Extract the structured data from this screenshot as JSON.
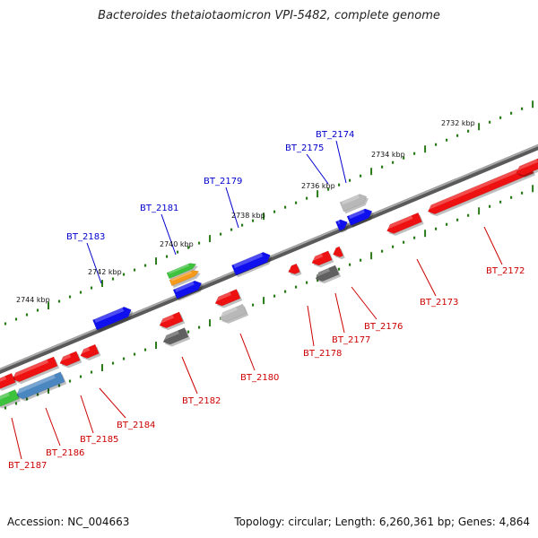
{
  "title": "Bacteroides thetaiotaomicron VPI-5482, complete genome",
  "footer": {
    "accession": "Accession: NC_004663",
    "topology": "Topology: circular; Length: 6,260,361 bp; Genes: 4,864"
  },
  "colors": {
    "backbone": "#8a8a8a",
    "tick": "#2a7a1a",
    "forward_label": "#0000cc",
    "reverse_label": "#cc0000",
    "red": "#ee1111",
    "blue": "#1010ee",
    "gray": "#b8b8b8",
    "darkgray": "#606060",
    "steel": "#4a86c0",
    "green": "#3cc23c",
    "orange": "#f59a1a"
  },
  "scale": {
    "labels": [
      {
        "text": "2732 kbp"
      },
      {
        "text": "2734 kbp"
      },
      {
        "text": "2736 kbp"
      },
      {
        "text": "2738 kbp"
      },
      {
        "text": "2740 kbp"
      },
      {
        "text": "2742 kbp"
      },
      {
        "text": "2744 kbp"
      }
    ]
  },
  "genes": [
    {
      "label": "BT_2172",
      "strand": "reverse",
      "color": "red"
    },
    {
      "label": "BT_2173",
      "strand": "reverse",
      "color": "red"
    },
    {
      "label": "BT_2174",
      "strand": "forward",
      "color": "gray"
    },
    {
      "label": "BT_2175",
      "strand": "forward",
      "color": "blue"
    },
    {
      "label": "BT_2176",
      "strand": "reverse",
      "color": "red"
    },
    {
      "label": "BT_2177",
      "strand": "reverse",
      "color": "darkgray"
    },
    {
      "label": "BT_2178",
      "strand": "reverse",
      "color": "red"
    },
    {
      "label": "BT_2179",
      "strand": "forward",
      "color": "blue"
    },
    {
      "label": "BT_2180",
      "strand": "reverse",
      "color": "gray"
    },
    {
      "label": "BT_2181",
      "strand": "forward",
      "color": "blue"
    },
    {
      "label": "BT_2182",
      "strand": "reverse",
      "color": "darkgray"
    },
    {
      "label": "BT_2183",
      "strand": "forward",
      "color": "blue"
    },
    {
      "label": "BT_2184",
      "strand": "reverse",
      "color": "red"
    },
    {
      "label": "BT_2185",
      "strand": "reverse",
      "color": "red"
    },
    {
      "label": "BT_2186",
      "strand": "reverse",
      "color": "steel"
    },
    {
      "label": "BT_2187",
      "strand": "reverse",
      "color": "green"
    }
  ]
}
